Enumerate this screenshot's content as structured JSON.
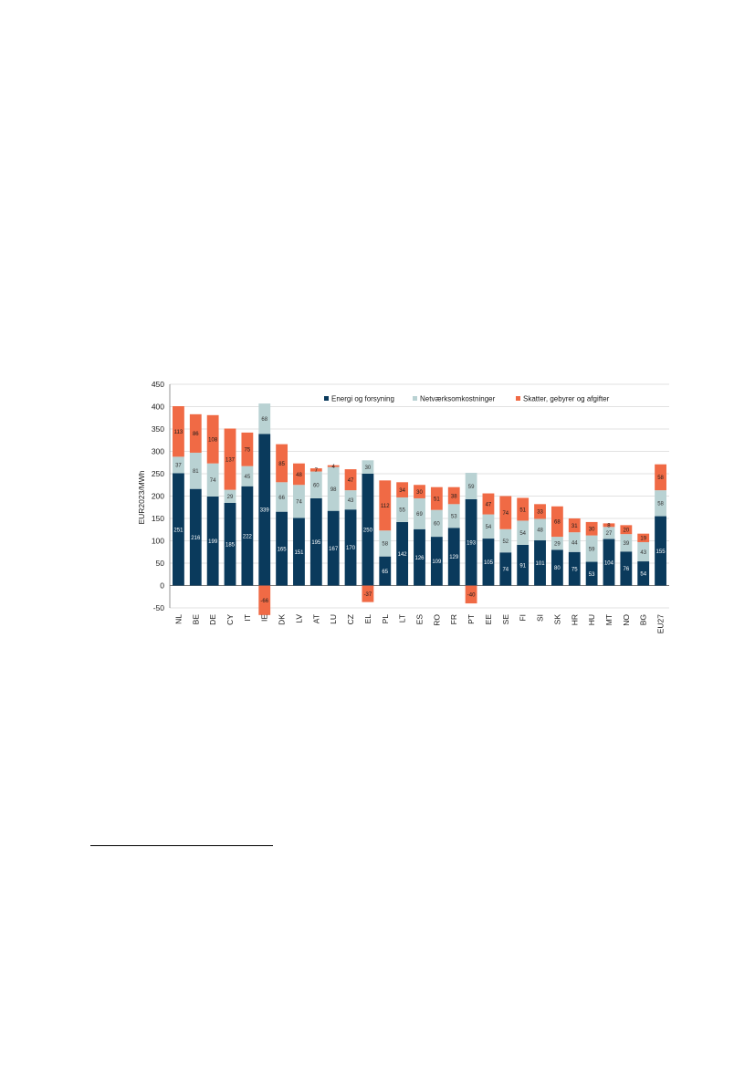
{
  "chart_data": {
    "type": "bar",
    "stacked": true,
    "title": "",
    "xlabel": "",
    "ylabel": "EUR2023/MWh",
    "ylim": [
      -50,
      450
    ],
    "yticks": [
      -50,
      0,
      50,
      100,
      150,
      200,
      250,
      300,
      350,
      400,
      450
    ],
    "grid": true,
    "legend_position": "top-right",
    "categories": [
      "NL",
      "BE",
      "DE",
      "CY",
      "IT",
      "IE",
      "DK",
      "LV",
      "AT",
      "LU",
      "CZ",
      "EL",
      "PL",
      "LT",
      "ES",
      "RO",
      "FR",
      "PT",
      "EE",
      "SE",
      "FI",
      "SI",
      "SK",
      "HR",
      "HU",
      "MT",
      "NO",
      "BG",
      "EU27"
    ],
    "series": [
      {
        "name": "Energi og forsyning",
        "color": "#0a3a5c",
        "label_color": "#ffffff",
        "values": [
          251,
          216,
          199,
          185,
          222,
          339,
          165,
          151,
          195,
          167,
          170,
          250,
          65,
          142,
          126,
          109,
          129,
          193,
          105,
          74,
          91,
          101,
          80,
          75,
          53,
          104,
          76,
          54,
          155
        ]
      },
      {
        "name": "Netværksomkostninger",
        "color": "#b9d2d3",
        "label_color": "#333333",
        "values": [
          37,
          81,
          74,
          29,
          45,
          68,
          66,
          74,
          60,
          98,
          43,
          30,
          58,
          55,
          69,
          60,
          53,
          59,
          54,
          52,
          54,
          48,
          29,
          44,
          59,
          27,
          39,
          43,
          58
        ]
      },
      {
        "name": "Skatter, gebyrer og afgifter",
        "color": "#f06a45",
        "label_color": "#1a1a1a",
        "values": [
          113,
          86,
          108,
          137,
          75,
          -66,
          85,
          48,
          7,
          4,
          47,
          -37,
          112,
          34,
          30,
          51,
          38,
          -40,
          47,
          74,
          51,
          33,
          68,
          31,
          30,
          8,
          20,
          19,
          58
        ]
      }
    ]
  }
}
